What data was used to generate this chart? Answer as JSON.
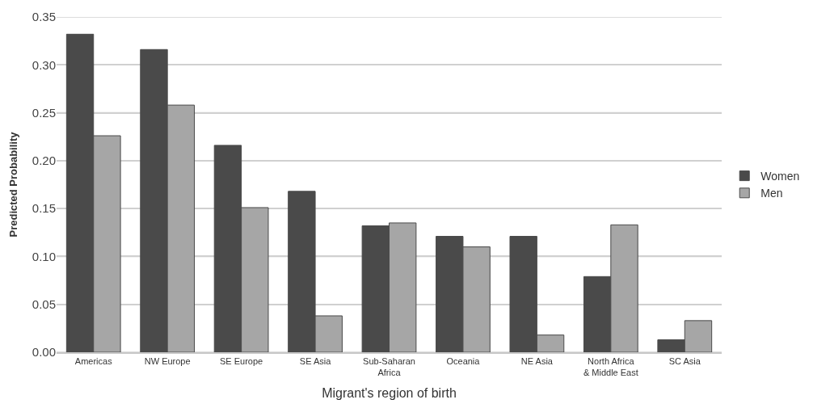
{
  "chart_data": {
    "type": "bar",
    "xlabel": "Migrant's region of birth",
    "ylabel": "Predicted Probability",
    "categories": [
      "Americas",
      "NW Europe",
      "SE Europe",
      "SE Asia",
      "Sub-Saharan Africa",
      "Oceania",
      "NE Asia",
      "North Africa & Middle East",
      "SC Asia"
    ],
    "series": [
      {
        "name": "Women",
        "color": "#4a4a4a",
        "values": [
          0.332,
          0.316,
          0.216,
          0.168,
          0.132,
          0.121,
          0.121,
          0.079,
          0.013
        ]
      },
      {
        "name": "Men",
        "color": "#a6a6a6",
        "values": [
          0.226,
          0.258,
          0.151,
          0.038,
          0.135,
          0.11,
          0.018,
          0.133,
          0.033
        ]
      }
    ],
    "ylim": [
      0,
      0.35
    ],
    "yticks": [
      {
        "value": 0,
        "label": "0.00"
      },
      {
        "value": 0.05,
        "label": "0.05"
      },
      {
        "value": 0.1,
        "label": "0.10"
      },
      {
        "value": 0.15,
        "label": "0.15"
      },
      {
        "value": 0.2,
        "label": "0.20"
      },
      {
        "value": 0.25,
        "label": "0.25"
      },
      {
        "value": 0.3,
        "label": "0.30"
      },
      {
        "value": 0.35,
        "label": "0.35"
      }
    ],
    "grid": "y",
    "legend": "right"
  }
}
